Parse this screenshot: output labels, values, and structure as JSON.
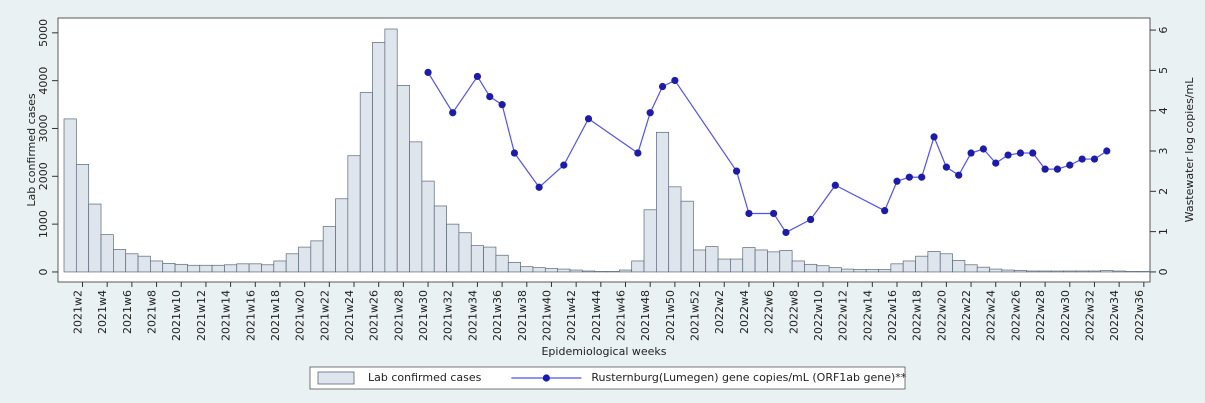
{
  "chart_data": {
    "type": "bar",
    "x_label": "Epidemiological weeks",
    "y_label": "Lab confirmed cases",
    "y2_label": "Wastewater log copies/mL",
    "legend": "bottom",
    "ylim": [
      -210,
      5310
    ],
    "yticks": [
      0,
      1000,
      2000,
      3000,
      4000,
      5000
    ],
    "y2lim": [
      -0.25,
      6.3
    ],
    "y2ticks": [
      0,
      1,
      2,
      3,
      4,
      5,
      6
    ],
    "categories": [
      null,
      "2021w2",
      null,
      "2021w4",
      null,
      "2021w6",
      null,
      "2021w8",
      null,
      "2021w10",
      null,
      "2021w12",
      null,
      "2021w14",
      null,
      "2021w16",
      null,
      "2021w18",
      null,
      "2021w20",
      null,
      "2021w22",
      null,
      "2021w24",
      null,
      "2021w26",
      null,
      "2021w28",
      null,
      "2021w30",
      null,
      "2021w32",
      null,
      "2021w34",
      null,
      "2021w36",
      null,
      "2021w38",
      null,
      "2021w40",
      null,
      "2021w42",
      null,
      "2021w44",
      null,
      "2021w46",
      null,
      "2021w48",
      null,
      "2021w50",
      null,
      "2021w52",
      null,
      "2022w2",
      null,
      "2022w4",
      null,
      "2022w6",
      null,
      "2022w8",
      null,
      "2022w10",
      null,
      "2022w12",
      null,
      "2022w14",
      null,
      "2022w16",
      null,
      "2022w18",
      null,
      "2022w20",
      null,
      "2022w22",
      null,
      "2022w24",
      null,
      "2022w26",
      null,
      "2022w28",
      null,
      "2022w30",
      null,
      "2022w32",
      null,
      "2022w34",
      null,
      "2022w36"
    ],
    "series": [
      {
        "name": "Lab confirmed cases",
        "type": "bar",
        "color": "#dfe5ec",
        "edge_color": "#5b6878",
        "values": [
          3200,
          2250,
          1420,
          780,
          470,
          380,
          330,
          230,
          180,
          160,
          140,
          140,
          140,
          150,
          170,
          170,
          150,
          230,
          380,
          520,
          650,
          950,
          1530,
          2430,
          3750,
          4800,
          5080,
          3900,
          2720,
          1900,
          1380,
          1000,
          820,
          550,
          520,
          350,
          200,
          110,
          90,
          70,
          60,
          40,
          20,
          10,
          10,
          40,
          230,
          1300,
          2920,
          1780,
          1480,
          460,
          530,
          270,
          270,
          510,
          460,
          420,
          450,
          230,
          160,
          130,
          90,
          60,
          50,
          50,
          50,
          170,
          230,
          330,
          430,
          380,
          240,
          150,
          100,
          60,
          40,
          30,
          20,
          20,
          20,
          20,
          20,
          20,
          30,
          20,
          10,
          10
        ]
      },
      {
        "name": "Rusternburg(Lumegen) gene copies/mL (ORF1ab gene)**",
        "type": "line",
        "axis": "y2",
        "color": "#5252f0",
        "marker_color": "#1c1ca8",
        "values": [
          null,
          null,
          null,
          null,
          null,
          null,
          null,
          null,
          null,
          null,
          null,
          null,
          null,
          null,
          null,
          null,
          null,
          null,
          null,
          null,
          null,
          null,
          null,
          null,
          null,
          null,
          null,
          null,
          null,
          4.95,
          null,
          3.95,
          null,
          4.85,
          4.35,
          4.15,
          2.95,
          null,
          2.1,
          null,
          2.65,
          null,
          3.8,
          null,
          null,
          null,
          2.95,
          3.95,
          4.6,
          4.75,
          null,
          null,
          null,
          null,
          2.5,
          1.45,
          null,
          1.45,
          0.98,
          null,
          1.3,
          null,
          2.15,
          null,
          null,
          null,
          1.52,
          2.25,
          2.35,
          2.35,
          3.35,
          2.6,
          2.4,
          2.95,
          3.05,
          2.7,
          2.9,
          2.95,
          2.95,
          2.55,
          2.55,
          2.65,
          2.8,
          2.8,
          3.0,
          null,
          null,
          null
        ]
      }
    ]
  }
}
